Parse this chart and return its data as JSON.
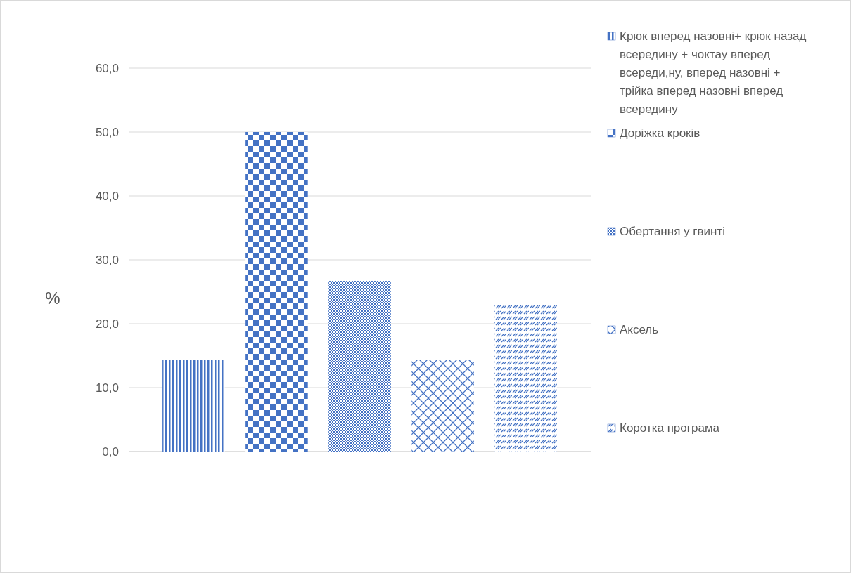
{
  "chart_data": {
    "type": "bar",
    "ylabel": "%",
    "categories": [
      null
    ],
    "series": [
      {
        "name": "Крюк вперед назовні+ крюк назад всередину + чоктау вперед всереди,ну, вперед назовні + трійка вперед назовні вперед всередину",
        "color": "#4472c4",
        "values": [
          14.3
        ]
      },
      {
        "name": "Доріжка кроків",
        "color": "#4472c4",
        "values": [
          50.0
        ]
      },
      {
        "name": "Обертання у гвинті",
        "color": "#4472c4",
        "values": [
          26.7
        ]
      },
      {
        "name": "Аксель",
        "color": "#4472c4",
        "values": [
          14.3
        ]
      },
      {
        "name": "Коротка програма",
        "color": "#4472c4",
        "values": [
          23.0
        ]
      }
    ],
    "ylim": [
      0,
      60
    ],
    "yticks": [
      {
        "value": 0,
        "label": "0,0"
      },
      {
        "value": 10,
        "label": "10,0"
      },
      {
        "value": 20,
        "label": "20,0"
      },
      {
        "value": 30,
        "label": "30,0"
      },
      {
        "value": 40,
        "label": "40,0"
      },
      {
        "value": 50,
        "label": "50,0"
      },
      {
        "value": 60,
        "label": "60,0"
      }
    ],
    "grid": "y",
    "legend": "right"
  }
}
